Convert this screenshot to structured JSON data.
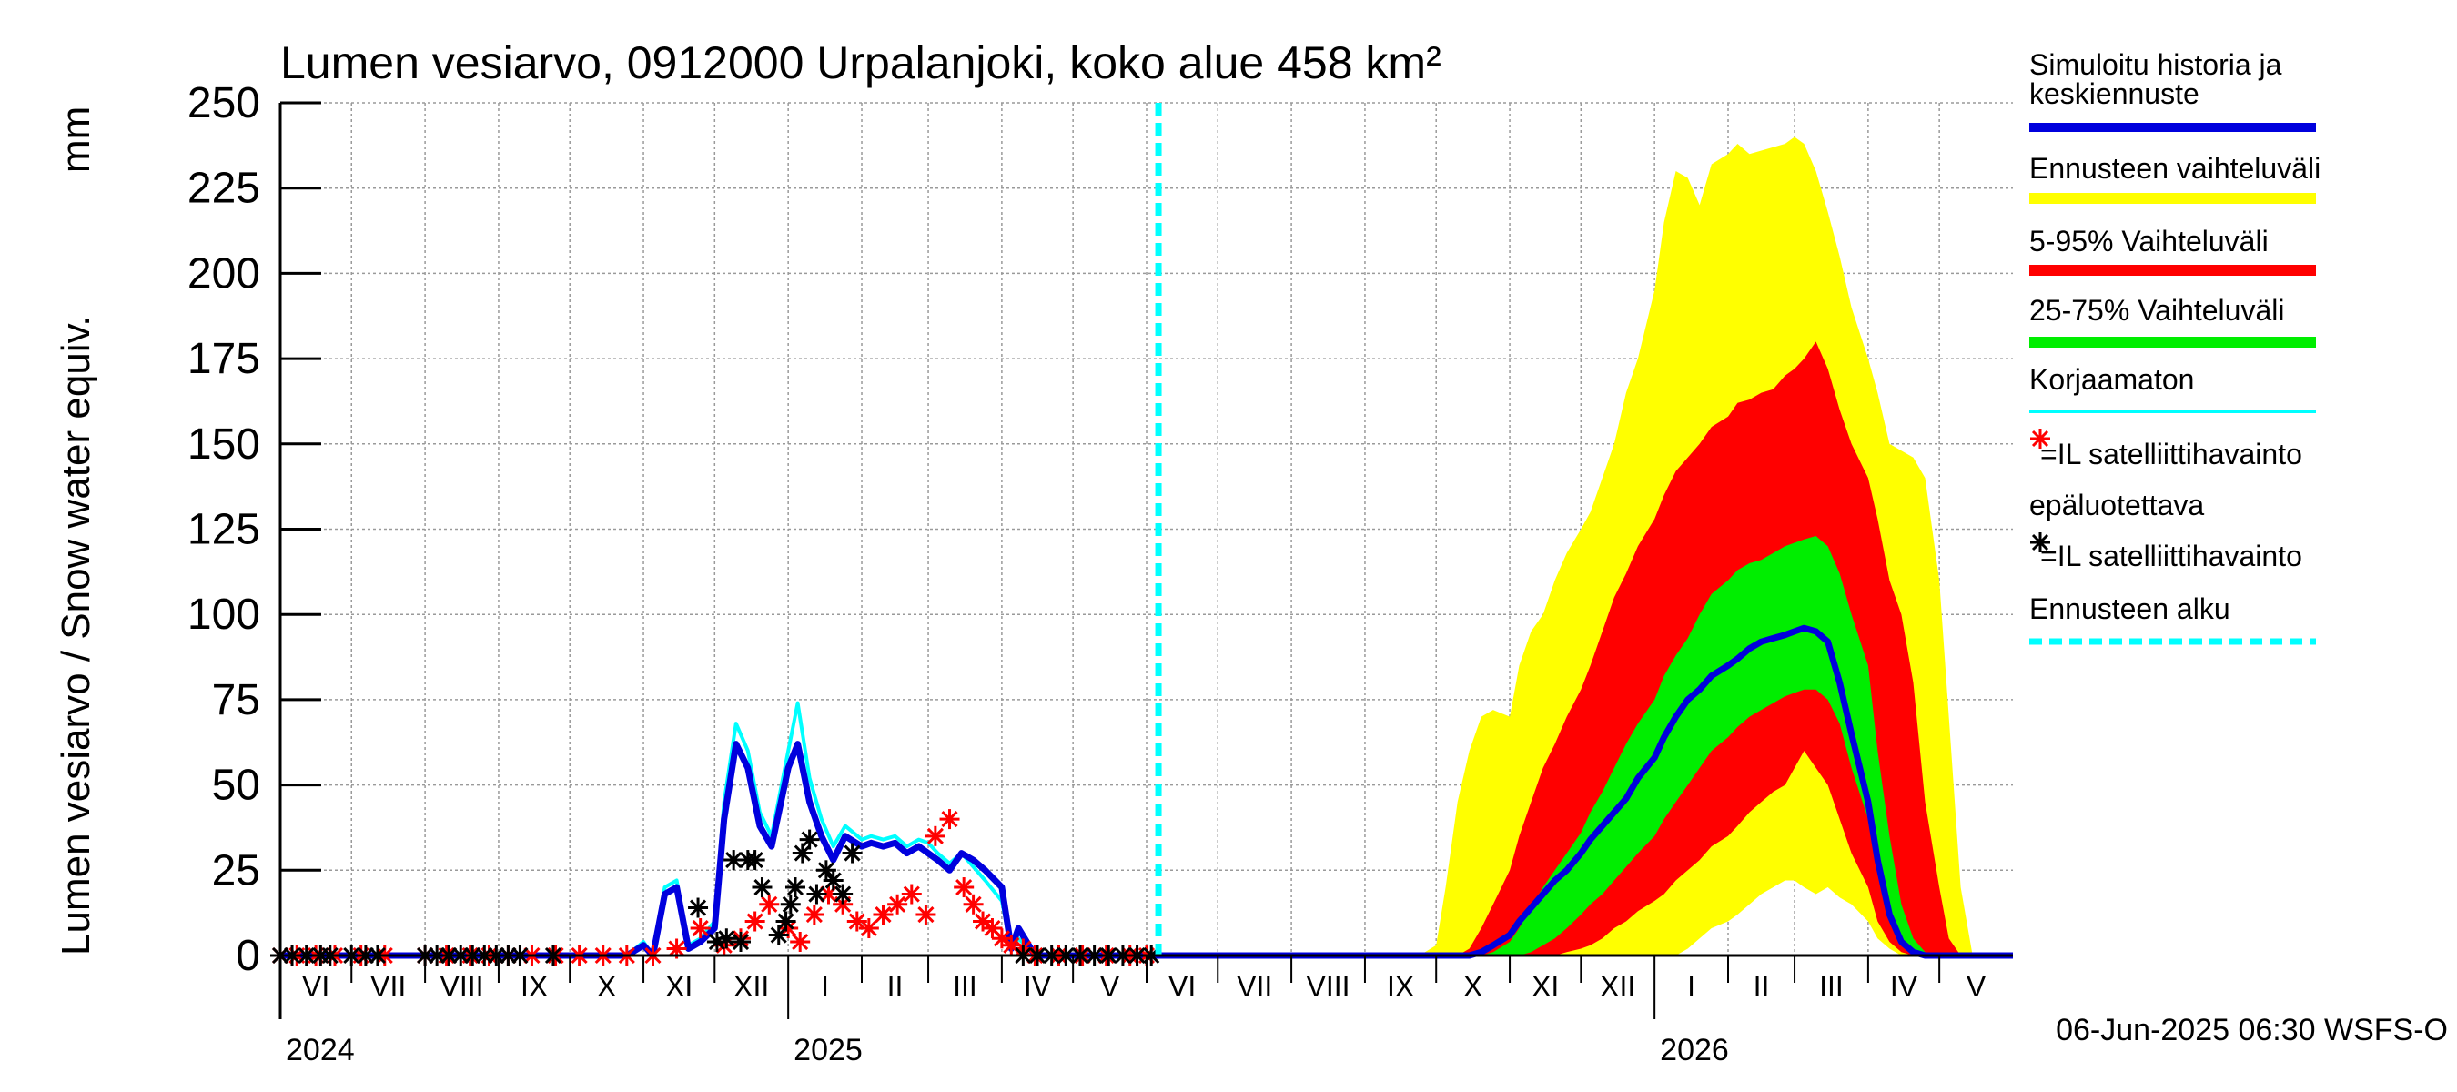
{
  "chart_data": {
    "type": "area",
    "title": "Lumen vesiarvo, 0912000 Urpalanjoki, koko alue 458 km²",
    "ylabel": "Lumen vesiarvo / Snow water equiv.",
    "yunit": "mm",
    "ylim": [
      0,
      250
    ],
    "yticks": [
      "0",
      "25",
      "50",
      "75",
      "100",
      "125",
      "150",
      "175",
      "200",
      "225",
      "250"
    ],
    "xlim": [
      "2024-06-01",
      "2026-06-01"
    ],
    "month_labels": [
      "VI",
      "VII",
      "VIII",
      "IX",
      "X",
      "XI",
      "XII",
      "I",
      "II",
      "III",
      "IV",
      "V",
      "VI",
      "VII",
      "VIII",
      "IX",
      "X",
      "XI",
      "XII",
      "I",
      "II",
      "III",
      "IV",
      "V"
    ],
    "year_labels": [
      "2024",
      "2025",
      "2026"
    ],
    "forecast_start": "2025-06-06",
    "grid": true,
    "footer": "06-Jun-2025 06:30 WSFS-O",
    "legend": {
      "placement": "right",
      "items": [
        {
          "label": "Simuloitu historia ja keskiennuste",
          "color": "#0000dd"
        },
        {
          "label": "Ennusteen vaihteluväli",
          "color": "#ffff00"
        },
        {
          "label": "5-95% Vaihteluväli",
          "color": "#ff0000"
        },
        {
          "label": "25-75% Vaihteluväli",
          "color": "#00ee00"
        },
        {
          "label": "Korjaamaton",
          "color": "#00ffff"
        },
        {
          "label": "=IL satelliittihavainto",
          "sublabel": "epäluotettava",
          "color": "#ff0000"
        },
        {
          "label": "=IL satelliittihavainto",
          "color": "#000000"
        },
        {
          "label": "Ennusteen alku",
          "color": "#00ffff"
        }
      ]
    },
    "series": [
      {
        "name": "Ennusteen vaihteluväli",
        "color": "#ffff00",
        "dates": [
          "2025-09-24",
          "2025-10-01",
          "2025-10-05",
          "2025-10-10",
          "2025-10-15",
          "2025-10-20",
          "2025-10-25",
          "2025-11-01",
          "2025-11-05",
          "2025-11-10",
          "2025-11-15",
          "2025-11-20",
          "2025-11-25",
          "2025-12-01",
          "2025-12-05",
          "2025-12-10",
          "2025-12-15",
          "2025-12-20",
          "2025-12-25",
          "2026-01-01",
          "2026-01-05",
          "2026-01-10",
          "2026-01-15",
          "2026-01-20",
          "2026-01-25",
          "2026-02-01",
          "2026-02-05",
          "2026-02-10",
          "2026-02-15",
          "2026-02-20",
          "2026-02-25",
          "2026-03-01",
          "2026-03-05",
          "2026-03-10",
          "2026-03-15",
          "2026-03-20",
          "2026-03-25",
          "2026-04-01",
          "2026-04-05",
          "2026-04-10",
          "2026-04-15",
          "2026-04-20",
          "2026-04-25",
          "2026-05-01",
          "2026-05-05",
          "2026-05-10",
          "2026-05-15"
        ],
        "upper": [
          0,
          3,
          20,
          45,
          60,
          70,
          72,
          70,
          85,
          95,
          100,
          110,
          118,
          125,
          130,
          140,
          150,
          165,
          175,
          195,
          215,
          230,
          228,
          220,
          232,
          235,
          238,
          235,
          236,
          237,
          238,
          240,
          238,
          230,
          218,
          205,
          190,
          175,
          165,
          150,
          148,
          146,
          140,
          110,
          70,
          20,
          0
        ],
        "lower": [
          0,
          0,
          0,
          0,
          0,
          0,
          0,
          0,
          0,
          0,
          0,
          0,
          0,
          0,
          0,
          0,
          0,
          0,
          0,
          0,
          0,
          0,
          2,
          5,
          8,
          10,
          12,
          15,
          18,
          20,
          22,
          22,
          20,
          18,
          20,
          17,
          15,
          10,
          5,
          2,
          0,
          0,
          0,
          0,
          0,
          0,
          0
        ]
      },
      {
        "name": "5-95% Vaihteluväli",
        "color": "#ff0000",
        "dates": [
          "2025-10-10",
          "2025-10-15",
          "2025-10-20",
          "2025-10-25",
          "2025-11-01",
          "2025-11-05",
          "2025-11-10",
          "2025-11-15",
          "2025-11-20",
          "2025-11-25",
          "2025-12-01",
          "2025-12-05",
          "2025-12-10",
          "2025-12-15",
          "2025-12-20",
          "2025-12-25",
          "2026-01-01",
          "2026-01-05",
          "2026-01-10",
          "2026-01-15",
          "2026-01-20",
          "2026-01-25",
          "2026-02-01",
          "2026-02-05",
          "2026-02-10",
          "2026-02-15",
          "2026-02-20",
          "2026-02-25",
          "2026-03-01",
          "2026-03-05",
          "2026-03-10",
          "2026-03-15",
          "2026-03-20",
          "2026-03-25",
          "2026-04-01",
          "2026-04-05",
          "2026-04-10",
          "2026-04-15",
          "2026-04-20",
          "2026-04-25",
          "2026-05-01",
          "2026-05-05",
          "2026-05-10"
        ],
        "upper": [
          0,
          2,
          8,
          15,
          25,
          35,
          45,
          55,
          62,
          70,
          78,
          85,
          95,
          105,
          112,
          120,
          128,
          135,
          142,
          146,
          150,
          155,
          158,
          162,
          163,
          165,
          166,
          170,
          172,
          175,
          180,
          172,
          160,
          150,
          140,
          128,
          110,
          100,
          80,
          45,
          20,
          5,
          0
        ],
        "lower": [
          0,
          0,
          0,
          0,
          0,
          0,
          0,
          0,
          0,
          1,
          2,
          3,
          5,
          8,
          10,
          13,
          16,
          18,
          22,
          25,
          28,
          32,
          35,
          38,
          42,
          45,
          48,
          50,
          55,
          60,
          55,
          50,
          40,
          30,
          20,
          10,
          4,
          1,
          0,
          0,
          0,
          0,
          0
        ]
      },
      {
        "name": "25-75% Vaihteluväli",
        "color": "#00ee00",
        "dates": [
          "2025-10-20",
          "2025-10-25",
          "2025-11-01",
          "2025-11-05",
          "2025-11-10",
          "2025-11-15",
          "2025-11-20",
          "2025-11-25",
          "2025-12-01",
          "2025-12-05",
          "2025-12-10",
          "2025-12-15",
          "2025-12-20",
          "2025-12-25",
          "2026-01-01",
          "2026-01-05",
          "2026-01-10",
          "2026-01-15",
          "2026-01-20",
          "2026-01-25",
          "2026-02-01",
          "2026-02-05",
          "2026-02-10",
          "2026-02-15",
          "2026-02-20",
          "2026-02-25",
          "2026-03-01",
          "2026-03-05",
          "2026-03-10",
          "2026-03-15",
          "2026-03-20",
          "2026-03-25",
          "2026-04-01",
          "2026-04-05",
          "2026-04-10",
          "2026-04-15",
          "2026-04-20",
          "2026-04-25",
          "2026-05-01"
        ],
        "upper": [
          0,
          1,
          4,
          8,
          14,
          20,
          25,
          30,
          36,
          42,
          48,
          55,
          62,
          68,
          75,
          82,
          88,
          93,
          100,
          106,
          110,
          113,
          115,
          116,
          118,
          120,
          121,
          122,
          123,
          120,
          112,
          100,
          85,
          60,
          35,
          15,
          5,
          1,
          0
        ],
        "lower": [
          0,
          0,
          0,
          0,
          1,
          3,
          5,
          8,
          12,
          15,
          18,
          22,
          26,
          30,
          35,
          40,
          45,
          50,
          55,
          60,
          64,
          67,
          70,
          72,
          74,
          76,
          77,
          78,
          78,
          75,
          68,
          55,
          40,
          25,
          12,
          3,
          0,
          0,
          0
        ]
      },
      {
        "name": "Simuloitu historia ja keskiennuste",
        "color": "#0000dd",
        "dates": [
          "2024-06-01",
          "2024-10-25",
          "2024-11-01",
          "2024-11-05",
          "2024-11-10",
          "2024-11-15",
          "2024-11-20",
          "2024-11-25",
          "2024-12-01",
          "2024-12-05",
          "2024-12-10",
          "2024-12-15",
          "2024-12-20",
          "2024-12-25",
          "2025-01-01",
          "2025-01-05",
          "2025-01-10",
          "2025-01-15",
          "2025-01-20",
          "2025-01-25",
          "2025-02-01",
          "2025-02-05",
          "2025-02-10",
          "2025-02-15",
          "2025-02-20",
          "2025-02-25",
          "2025-03-01",
          "2025-03-05",
          "2025-03-10",
          "2025-03-15",
          "2025-03-20",
          "2025-03-25",
          "2025-04-01",
          "2025-04-05",
          "2025-04-08",
          "2025-04-15",
          "2025-10-15",
          "2025-10-20",
          "2025-10-25",
          "2025-11-01",
          "2025-11-05",
          "2025-11-10",
          "2025-11-15",
          "2025-11-20",
          "2025-11-25",
          "2025-12-01",
          "2025-12-05",
          "2025-12-10",
          "2025-12-15",
          "2025-12-20",
          "2025-12-25",
          "2026-01-01",
          "2026-01-05",
          "2026-01-10",
          "2026-01-15",
          "2026-01-20",
          "2026-01-25",
          "2026-02-01",
          "2026-02-05",
          "2026-02-10",
          "2026-02-15",
          "2026-02-20",
          "2026-02-25",
          "2026-03-01",
          "2026-03-05",
          "2026-03-10",
          "2026-03-15",
          "2026-03-20",
          "2026-03-25",
          "2026-04-01",
          "2026-04-05",
          "2026-04-10",
          "2026-04-15",
          "2026-04-20",
          "2026-04-25",
          "2026-05-01",
          "2026-06-01"
        ],
        "values": [
          0,
          0,
          3,
          0,
          18,
          20,
          2,
          4,
          8,
          40,
          62,
          55,
          38,
          32,
          55,
          62,
          45,
          35,
          28,
          35,
          32,
          33,
          32,
          33,
          30,
          32,
          30,
          28,
          25,
          30,
          28,
          25,
          20,
          2,
          8,
          0,
          0,
          1,
          3,
          6,
          10,
          14,
          18,
          22,
          25,
          30,
          34,
          38,
          42,
          46,
          52,
          58,
          64,
          70,
          75,
          78,
          82,
          85,
          87,
          90,
          92,
          93,
          94,
          95,
          96,
          95,
          92,
          80,
          65,
          45,
          28,
          12,
          4,
          1,
          0,
          0,
          0
        ]
      },
      {
        "name": "Korjaamaton",
        "color": "#00ffff",
        "dates": [
          "2024-06-01",
          "2024-10-25",
          "2024-11-01",
          "2024-11-05",
          "2024-11-10",
          "2024-11-15",
          "2024-11-20",
          "2024-11-25",
          "2024-12-01",
          "2024-12-05",
          "2024-12-10",
          "2024-12-15",
          "2024-12-20",
          "2024-12-25",
          "2025-01-01",
          "2025-01-05",
          "2025-01-10",
          "2025-01-15",
          "2025-01-20",
          "2025-01-25",
          "2025-02-01",
          "2025-02-05",
          "2025-02-10",
          "2025-02-15",
          "2025-02-20",
          "2025-02-25",
          "2025-03-01",
          "2025-03-05",
          "2025-03-10",
          "2025-03-15",
          "2025-03-20",
          "2025-03-25",
          "2025-04-01",
          "2025-04-05",
          "2025-04-08",
          "2025-04-15",
          "2025-06-06"
        ],
        "values": [
          0,
          0,
          4,
          0,
          20,
          22,
          3,
          5,
          10,
          45,
          68,
          60,
          42,
          35,
          60,
          74,
          52,
          40,
          32,
          38,
          34,
          35,
          34,
          35,
          32,
          34,
          33,
          30,
          27,
          30,
          26,
          22,
          16,
          2,
          5,
          0,
          0
        ]
      },
      {
        "name": "=IL satelliittihavainto epäluotettava",
        "color": "#ff0000",
        "marker": "asterisk",
        "dates": [
          "2024-06-01",
          "2024-06-08",
          "2024-06-16",
          "2024-06-24",
          "2024-07-05",
          "2024-07-15",
          "2024-08-01",
          "2024-08-10",
          "2024-08-20",
          "2024-08-28",
          "2024-09-05",
          "2024-09-15",
          "2024-09-25",
          "2024-10-05",
          "2024-10-15",
          "2024-10-25",
          "2024-11-05",
          "2024-11-15",
          "2024-11-25",
          "2024-12-05",
          "2024-12-12",
          "2024-12-18",
          "2024-12-24",
          "2025-01-01",
          "2025-01-06",
          "2025-01-12",
          "2025-01-18",
          "2025-01-24",
          "2025-01-30",
          "2025-02-04",
          "2025-02-10",
          "2025-02-16",
          "2025-02-22",
          "2025-02-28",
          "2025-03-04",
          "2025-03-10",
          "2025-03-16",
          "2025-03-20",
          "2025-03-24",
          "2025-03-28",
          "2025-04-01",
          "2025-04-05",
          "2025-04-10",
          "2025-04-15",
          "2025-04-25",
          "2025-05-05",
          "2025-05-15",
          "2025-05-25",
          "2025-06-01"
        ],
        "values": [
          0,
          0,
          0,
          0,
          0,
          0,
          0,
          0,
          0,
          0,
          0,
          0,
          0,
          0,
          0,
          0,
          0,
          2,
          8,
          3,
          5,
          10,
          15,
          8,
          4,
          12,
          18,
          15,
          10,
          8,
          12,
          15,
          18,
          12,
          35,
          40,
          20,
          15,
          10,
          8,
          5,
          3,
          2,
          0,
          0,
          0,
          0,
          0,
          0
        ]
      },
      {
        "name": "=IL satelliittihavainto",
        "color": "#000000",
        "marker": "asterisk",
        "dates": [
          "2024-06-01",
          "2024-06-06",
          "2024-06-12",
          "2024-06-18",
          "2024-06-22",
          "2024-07-01",
          "2024-07-07",
          "2024-07-12",
          "2024-08-01",
          "2024-08-06",
          "2024-08-11",
          "2024-08-16",
          "2024-08-21",
          "2024-08-26",
          "2024-08-31",
          "2024-09-05",
          "2024-09-10",
          "2024-09-24",
          "2024-11-24",
          "2024-12-02",
          "2024-12-06",
          "2024-12-09",
          "2024-12-12",
          "2024-12-15",
          "2024-12-18",
          "2024-12-21",
          "2024-12-28",
          "2024-12-31",
          "2025-01-02",
          "2025-01-04",
          "2025-01-07",
          "2025-01-10",
          "2025-01-13",
          "2025-01-17",
          "2025-01-20",
          "2025-01-24",
          "2025-01-28",
          "2025-04-10",
          "2025-04-16",
          "2025-04-22",
          "2025-04-28",
          "2025-05-04",
          "2025-05-10",
          "2025-05-16",
          "2025-05-22",
          "2025-05-28",
          "2025-06-03"
        ],
        "values": [
          0,
          0,
          0,
          0,
          0,
          0,
          0,
          0,
          0,
          0,
          0,
          0,
          0,
          0,
          0,
          0,
          0,
          0,
          14,
          4,
          5,
          28,
          4,
          28,
          28,
          20,
          6,
          10,
          15,
          20,
          30,
          34,
          18,
          25,
          22,
          18,
          30,
          0,
          0,
          0,
          0,
          0,
          0,
          0,
          0,
          0,
          0
        ]
      }
    ]
  }
}
